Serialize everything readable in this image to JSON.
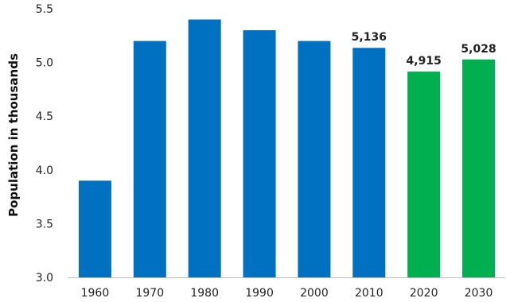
{
  "chart_data": {
    "type": "bar",
    "title": "",
    "xlabel": "",
    "ylabel": "Population in thousands",
    "categories": [
      "1960",
      "1970",
      "1980",
      "1990",
      "2000",
      "2010",
      "2020",
      "2030"
    ],
    "values": [
      3.9,
      5.2,
      5.4,
      5.3,
      5.2,
      5.136,
      4.915,
      5.028
    ],
    "data_labels": [
      "",
      "",
      "",
      "",
      "",
      "5,136",
      "4,915",
      "5,028"
    ],
    "colors": [
      "#0070c0",
      "#0070c0",
      "#0070c0",
      "#0070c0",
      "#0070c0",
      "#0070c0",
      "#00b050",
      "#00b050"
    ],
    "ylim": [
      3.0,
      5.5
    ],
    "yticks": [
      3.0,
      3.5,
      4.0,
      4.5,
      5.0,
      5.5
    ],
    "ytick_labels": [
      "3.0",
      "3.5",
      "4.0",
      "4.5",
      "5.0",
      "5.5"
    ],
    "grid": false,
    "legend": "none"
  }
}
